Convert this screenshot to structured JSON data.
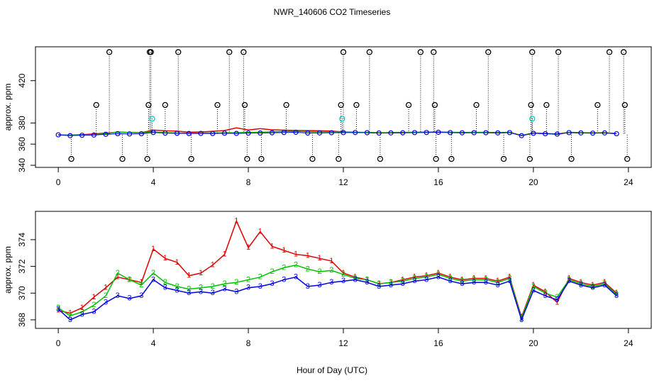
{
  "title": "NWR_140606  CO2 Timeseries",
  "x_label": "Hour of Day (UTC)",
  "chart_data": [
    {
      "type": "line",
      "y_label": "approx. ppm",
      "xlim": [
        -0.96,
        24.96
      ],
      "xticks": [
        0,
        4,
        8,
        12,
        16,
        20,
        24
      ],
      "ylim": [
        338,
        452
      ],
      "yticks": [
        340,
        360,
        380,
        420
      ],
      "x": [
        0,
        0.5,
        1,
        1.5,
        2,
        2.5,
        3,
        3.5,
        4,
        4.5,
        5,
        5.5,
        6,
        6.5,
        7,
        7.5,
        8,
        8.5,
        9,
        9.5,
        10,
        10.5,
        11,
        11.5,
        12,
        12.5,
        13,
        13.5,
        14,
        14.5,
        15,
        15.5,
        16,
        16.5,
        17,
        17.5,
        18,
        18.5,
        19,
        19.5,
        20,
        20.5,
        21,
        21.5,
        22,
        22.5,
        23,
        23.5
      ],
      "series": [
        {
          "color": "#e00000",
          "style": "line",
          "values": [
            368.7,
            368.5,
            368.9,
            369.7,
            370.4,
            371.2,
            371.0,
            370.8,
            373.3,
            372.6,
            372.3,
            371.3,
            371.5,
            372.1,
            372.9,
            375.4,
            373.4,
            374.6,
            373.5,
            373.2,
            372.9,
            372.8,
            372.6,
            372.4,
            371.5,
            371.2,
            371.0,
            370.7,
            370.8,
            371.0,
            371.2,
            371.3,
            371.5,
            371.2,
            371.0,
            371.1,
            371.1,
            370.9,
            371.2,
            368.2,
            370.6,
            370.1,
            369.3,
            371.1,
            370.8,
            370.6,
            370.8,
            370.0
          ]
        },
        {
          "color": "#00c000",
          "style": "line",
          "values": [
            368.9,
            368.3,
            368.6,
            369.1,
            369.8,
            371.5,
            371.0,
            370.6,
            371.5,
            370.8,
            370.5,
            370.3,
            370.4,
            370.5,
            370.7,
            370.8,
            371.0,
            371.2,
            371.6,
            371.9,
            372.1,
            371.8,
            371.6,
            371.7,
            371.4,
            371.1,
            371.0,
            370.7,
            370.8,
            370.9,
            371.1,
            371.2,
            371.4,
            371.1,
            370.9,
            371.0,
            371.0,
            370.8,
            371.1,
            368.1,
            370.5,
            370.0,
            369.7,
            371.0,
            370.7,
            370.5,
            370.7,
            369.9
          ]
        },
        {
          "color": "#0000e0",
          "style": "points",
          "values": [
            368.8,
            368.0,
            368.4,
            368.6,
            369.3,
            369.8,
            369.6,
            369.8,
            371.0,
            370.4,
            370.2,
            370.0,
            370.1,
            370.0,
            370.3,
            370.1,
            370.4,
            370.5,
            370.7,
            371.0,
            371.2,
            370.5,
            370.6,
            370.8,
            370.9,
            371.0,
            370.8,
            370.5,
            370.6,
            370.7,
            370.9,
            371.0,
            371.2,
            370.9,
            370.7,
            370.8,
            370.8,
            370.6,
            370.9,
            368.0,
            370.2,
            369.8,
            369.5,
            370.9,
            370.6,
            370.4,
            370.6,
            369.8
          ]
        },
        {
          "color": "#000000",
          "style": "flags",
          "x": [
            0.55,
            1.6,
            2.15,
            2.7,
            3.75,
            3.8,
            3.85,
            3.9,
            4.5,
            5.05,
            5.6,
            6.7,
            7.2,
            7.8,
            7.85,
            7.95,
            8.55,
            9.6,
            10.7,
            11.8,
            11.9,
            12.0,
            12.55,
            13.1,
            13.55,
            14.75,
            15.25,
            15.8,
            15.85,
            15.9,
            16.55,
            17.6,
            18.1,
            18.75,
            19.85,
            19.9,
            19.95,
            20.55,
            21.05,
            21.6,
            22.7,
            23.2,
            23.8,
            23.85,
            23.95
          ],
          "values": [
            346,
            397,
            447,
            346,
            346,
            397,
            447,
            447,
            397,
            447,
            346,
            397,
            447,
            447,
            397,
            346,
            346,
            397,
            346,
            346,
            397,
            447,
            397,
            447,
            346,
            397,
            447,
            447,
            397,
            346,
            346,
            397,
            447,
            346,
            346,
            397,
            447,
            397,
            447,
            346,
            397,
            447,
            447,
            397,
            346
          ]
        },
        {
          "color": "#00c8c8",
          "style": "flags",
          "x": [
            3.95,
            11.95,
            19.95
          ],
          "values": [
            384,
            384,
            384
          ]
        }
      ]
    },
    {
      "type": "line",
      "y_label": "approx. ppm",
      "xlim": [
        -0.96,
        24.96
      ],
      "xticks": [
        0,
        4,
        8,
        12,
        16,
        20,
        24
      ],
      "ylim": [
        367.36,
        376.12
      ],
      "yticks": [
        368,
        370,
        372,
        374
      ],
      "x": [
        0,
        0.5,
        1,
        1.5,
        2,
        2.5,
        3,
        3.5,
        4,
        4.5,
        5,
        5.5,
        6,
        6.5,
        7,
        7.5,
        8,
        8.5,
        9,
        9.5,
        10,
        10.5,
        11,
        11.5,
        12,
        12.5,
        13,
        13.5,
        14,
        14.5,
        15,
        15.5,
        16,
        16.5,
        17,
        17.5,
        18,
        18.5,
        19,
        19.5,
        20,
        20.5,
        21,
        21.5,
        22,
        22.5,
        23,
        23.5
      ],
      "series": [
        {
          "color": "#e00000",
          "marker": "1",
          "values": [
            368.7,
            368.5,
            368.9,
            369.7,
            370.4,
            371.2,
            371.0,
            370.8,
            373.3,
            372.6,
            372.3,
            371.3,
            371.5,
            372.1,
            372.9,
            375.4,
            373.4,
            374.6,
            373.5,
            373.2,
            372.9,
            372.8,
            372.6,
            372.4,
            371.5,
            371.2,
            371.0,
            370.7,
            370.8,
            371.0,
            371.2,
            371.3,
            371.5,
            371.2,
            371.0,
            371.1,
            371.1,
            370.9,
            371.2,
            368.2,
            370.6,
            370.1,
            369.3,
            371.1,
            370.8,
            370.6,
            370.8,
            370.0
          ]
        },
        {
          "color": "#00c000",
          "marker": "2",
          "values": [
            368.9,
            368.3,
            368.6,
            369.1,
            369.8,
            371.5,
            371.0,
            370.6,
            371.5,
            370.8,
            370.5,
            370.3,
            370.4,
            370.5,
            370.7,
            370.8,
            371.0,
            371.2,
            371.6,
            371.9,
            372.1,
            371.8,
            371.6,
            371.7,
            371.4,
            371.1,
            371.0,
            370.7,
            370.8,
            370.9,
            371.1,
            371.2,
            371.4,
            371.1,
            370.9,
            371.0,
            371.0,
            370.8,
            371.1,
            368.1,
            370.5,
            370.0,
            369.7,
            371.0,
            370.7,
            370.5,
            370.7,
            369.9
          ]
        },
        {
          "color": "#0000e0",
          "marker": "3",
          "values": [
            368.8,
            368.0,
            368.4,
            368.6,
            369.3,
            369.8,
            369.6,
            369.8,
            371.0,
            370.4,
            370.2,
            370.0,
            370.1,
            370.0,
            370.3,
            370.1,
            370.4,
            370.5,
            370.7,
            371.0,
            371.2,
            370.5,
            370.6,
            370.8,
            370.9,
            371.0,
            370.8,
            370.5,
            370.6,
            370.7,
            370.9,
            371.0,
            371.2,
            370.9,
            370.7,
            370.8,
            370.8,
            370.6,
            370.9,
            368.0,
            370.2,
            369.8,
            369.5,
            370.9,
            370.6,
            370.4,
            370.6,
            369.8
          ]
        }
      ]
    }
  ]
}
